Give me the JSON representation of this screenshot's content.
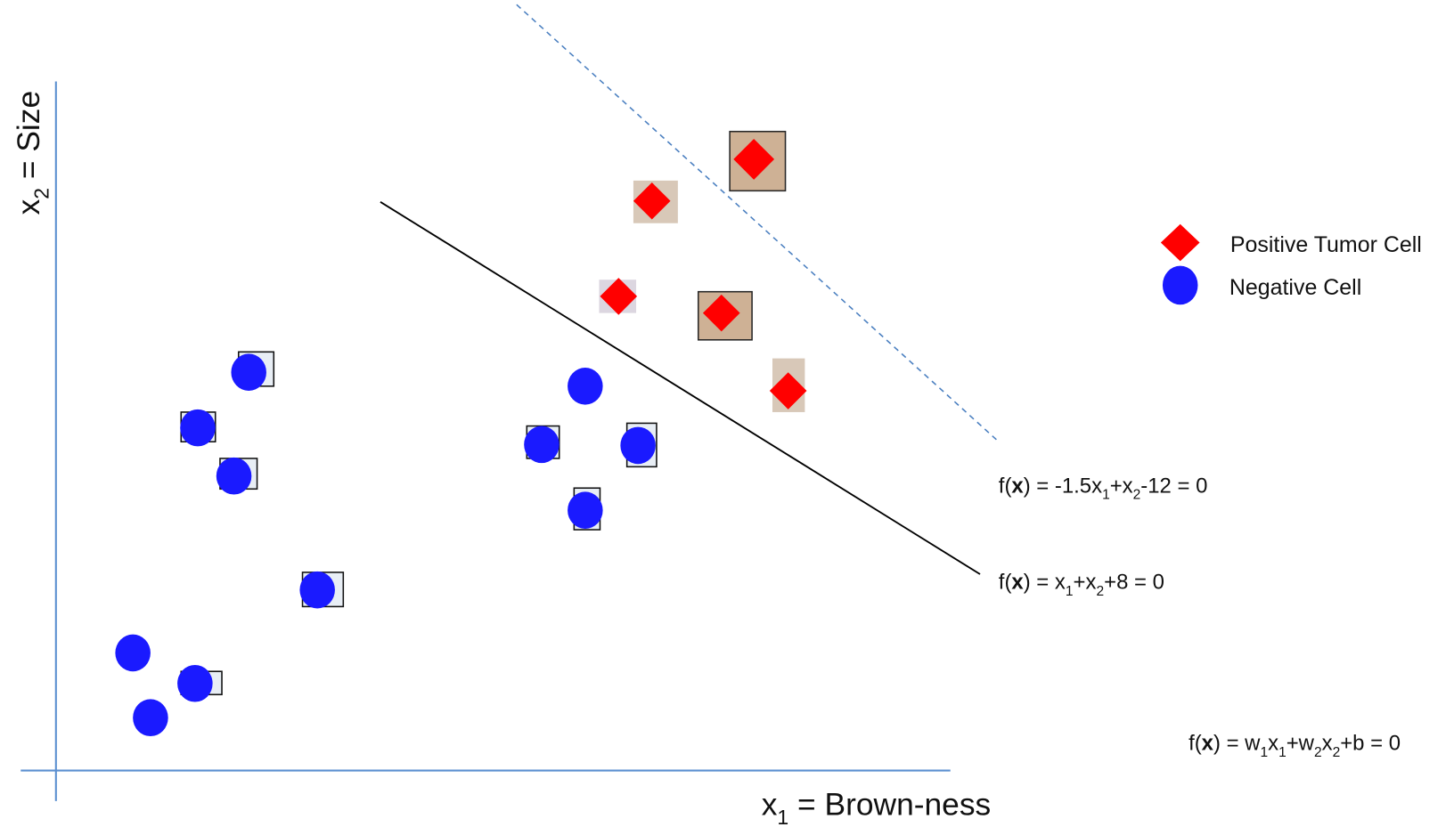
{
  "axes": {
    "y_label": [
      {
        "text": "x"
      },
      {
        "text": "2",
        "sub": true
      },
      {
        "text": " = Size"
      }
    ],
    "x_label": [
      {
        "text": "x"
      },
      {
        "text": "1",
        "sub": true
      },
      {
        "text": " = Brown-ness"
      }
    ]
  },
  "legend": [
    {
      "label": "Positive Tumor Cell",
      "marker": "diamond",
      "color": "#ff0000"
    },
    {
      "label": "Negative Cell",
      "marker": "circle",
      "color": "#1a1aff"
    }
  ],
  "equations": [
    [
      {
        "text": "f("
      },
      {
        "text": "x",
        "bold": true
      },
      {
        "text": ") = -1.5x"
      },
      {
        "text": "1",
        "sub": true
      },
      {
        "text": "+x"
      },
      {
        "text": "2",
        "sub": true
      },
      {
        "text": "-12 = 0"
      }
    ],
    [
      {
        "text": "f("
      },
      {
        "text": "x",
        "bold": true
      },
      {
        "text": ") = x"
      },
      {
        "text": "1",
        "sub": true
      },
      {
        "text": "+x"
      },
      {
        "text": "2",
        "sub": true
      },
      {
        "text": "+8 = 0"
      }
    ],
    [
      {
        "text": "f("
      },
      {
        "text": "x",
        "bold": true
      },
      {
        "text": ") = w"
      },
      {
        "text": "1",
        "sub": true
      },
      {
        "text": "x"
      },
      {
        "text": "1",
        "sub": true
      },
      {
        "text": "+w"
      },
      {
        "text": "2",
        "sub": true
      },
      {
        "text": "x"
      },
      {
        "text": "2",
        "sub": true
      },
      {
        "text": "+b = 0"
      }
    ]
  ]
}
